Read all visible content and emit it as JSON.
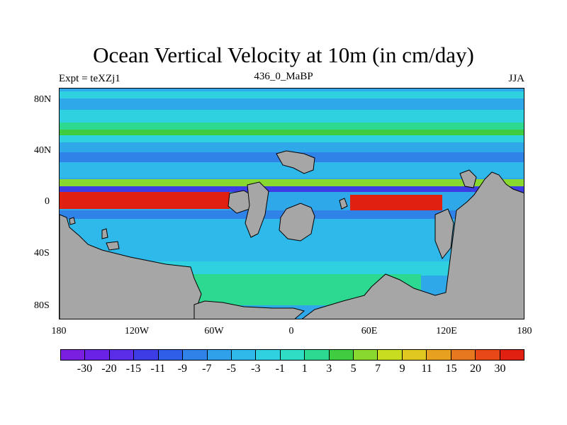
{
  "title": "Ocean Vertical Velocity at 10m (in cm/day)",
  "expt_label": "Expt = teXZj1",
  "case_label": "436_0_MaBP",
  "season_label": "JJA",
  "y_ticks": [
    "80N",
    "40N",
    "0",
    "40S",
    "80S"
  ],
  "x_ticks": [
    "180",
    "120W",
    "60W",
    "0",
    "60E",
    "120E",
    "180"
  ],
  "colorbar": {
    "colors": [
      "#7a1fe0",
      "#6a22e6",
      "#5b2de8",
      "#3d3de6",
      "#2f5fe6",
      "#2f82e8",
      "#2fa0ea",
      "#2fb8ea",
      "#2fd0e0",
      "#2fdcc4",
      "#2dd890",
      "#40cc40",
      "#88d830",
      "#c8dc20",
      "#e0c820",
      "#e8a020",
      "#e87820",
      "#e84818",
      "#e02010"
    ],
    "labels": [
      "-30",
      "-20",
      "-15",
      "-11",
      "-9",
      "-7",
      "-5",
      "-3",
      "-1",
      "1",
      "3",
      "5",
      "7",
      "9",
      "11",
      "15",
      "20",
      "30"
    ]
  },
  "land_color": "#a6a6a6"
}
